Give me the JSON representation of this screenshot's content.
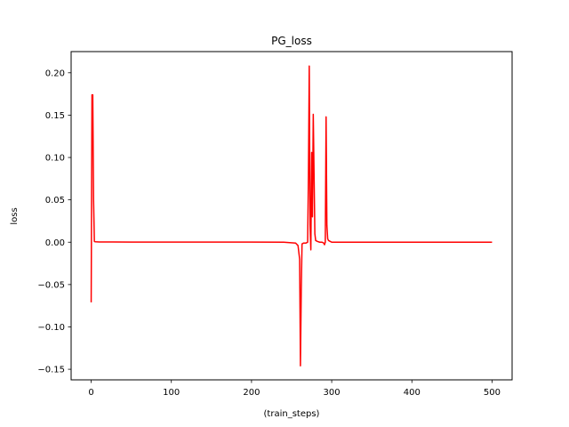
{
  "chart_data": {
    "type": "line",
    "title": "PG_loss",
    "xlabel": "(train_steps)",
    "ylabel": "loss",
    "xlim": [
      -25,
      525
    ],
    "ylim": [
      -0.1625,
      0.225
    ],
    "xticks": [
      0,
      100,
      200,
      300,
      400,
      500
    ],
    "yticks": [
      -0.15,
      -0.1,
      -0.05,
      0.0,
      0.05,
      0.1,
      0.15,
      0.2
    ],
    "ytick_labels": [
      "−0.15",
      "−0.10",
      "−0.05",
      "0.00",
      "0.05",
      "0.10",
      "0.15",
      "0.20"
    ],
    "grid": false,
    "series": [
      {
        "color": "#ff0000",
        "x": [
          0,
          1,
          2,
          3,
          4,
          5,
          10,
          50,
          100,
          150,
          200,
          240,
          255,
          258,
          260,
          261,
          262,
          263,
          265,
          268,
          270,
          271,
          272,
          273,
          274,
          275,
          276,
          277,
          278,
          279,
          280,
          282,
          285,
          288,
          290,
          291,
          292,
          293,
          294,
          295,
          296,
          298,
          300,
          310,
          350,
          400,
          450,
          500
        ],
        "values": [
          -0.071,
          0.174,
          0.174,
          0.05,
          0.001,
          0.0005,
          0.0003,
          0.0002,
          0.0001,
          0.0001,
          0.0001,
          0.0,
          -0.001,
          -0.004,
          -0.02,
          -0.146,
          -0.06,
          -0.002,
          -0.001,
          -0.001,
          0.0,
          0.08,
          0.208,
          0.02,
          -0.009,
          0.106,
          0.03,
          0.151,
          0.08,
          0.01,
          0.002,
          0.001,
          0.0,
          0.0,
          -0.001,
          -0.003,
          0.0,
          0.148,
          0.02,
          0.004,
          0.002,
          0.001,
          0.0,
          0.0,
          0.0,
          0.0,
          0.0,
          0.0
        ]
      }
    ]
  }
}
